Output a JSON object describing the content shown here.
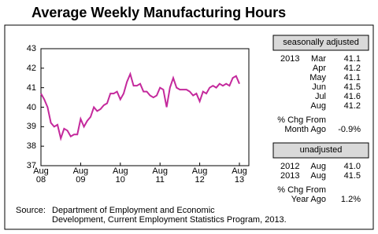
{
  "chart_data": {
    "type": "line",
    "title": "Average Weekly Manufacturing Hours",
    "categories": [
      "Aug\n08",
      null,
      null,
      null,
      null,
      null,
      null,
      null,
      null,
      null,
      null,
      null,
      "Aug\n09",
      null,
      null,
      null,
      null,
      null,
      null,
      null,
      null,
      null,
      null,
      null,
      "Aug\n10",
      null,
      null,
      null,
      null,
      null,
      null,
      null,
      null,
      null,
      null,
      null,
      "Aug\n11",
      null,
      null,
      null,
      null,
      null,
      null,
      null,
      null,
      null,
      null,
      null,
      "Aug\n12",
      null,
      null,
      null,
      null,
      null,
      null,
      null,
      null,
      null,
      null,
      null,
      "Aug\n13"
    ],
    "series": [
      {
        "color": "#c4299c",
        "values": [
          40.7,
          40.4,
          40.0,
          39.2,
          39.0,
          39.1,
          38.4,
          38.9,
          38.8,
          38.5,
          38.6,
          38.6,
          39.4,
          39.0,
          39.3,
          39.5,
          40.0,
          39.8,
          39.9,
          40.1,
          40.2,
          40.7,
          40.7,
          40.8,
          40.4,
          40.7,
          41.3,
          41.7,
          41.1,
          41.1,
          41.2,
          40.8,
          40.8,
          40.6,
          40.5,
          40.6,
          41.0,
          40.9,
          40.0,
          41.0,
          41.5,
          41.0,
          40.9,
          40.9,
          40.9,
          40.8,
          40.6,
          40.7,
          40.3,
          40.8,
          40.7,
          41.0,
          41.1,
          41.0,
          41.2,
          41.1,
          41.2,
          41.1,
          41.5,
          41.6,
          41.2
        ]
      }
    ],
    "ylim": [
      37,
      43
    ],
    "yticks": [
      37,
      38,
      39,
      40,
      41,
      42,
      43
    ]
  },
  "panel": {
    "seasonal": {
      "header": "seasonally adjusted",
      "rows": [
        {
          "year": "2013",
          "month": "Mar",
          "value": "41.1"
        },
        {
          "month": "Apr",
          "value": "41.2"
        },
        {
          "month": "May",
          "value": "41.1"
        },
        {
          "month": "Jun",
          "value": "41.5"
        },
        {
          "month": "Jul",
          "value": "41.6"
        },
        {
          "month": "Aug",
          "value": "41.2"
        }
      ],
      "change_lines": [
        "% Chg From",
        "Month Ago"
      ],
      "change": "-0.9%"
    },
    "unadjusted": {
      "header": "unadjusted",
      "rows": [
        {
          "year": "2012",
          "month": "Aug",
          "value": "41.0"
        },
        {
          "year": "2013",
          "month": "Aug",
          "value": "41.5"
        }
      ],
      "change_lines": [
        "% Chg From",
        "Year Ago"
      ],
      "change": "1.2%"
    }
  },
  "source": {
    "label": "Source:",
    "lines": [
      "Department of Employment and Economic",
      "Development, Current Employment Statistics Program, 2013."
    ]
  }
}
